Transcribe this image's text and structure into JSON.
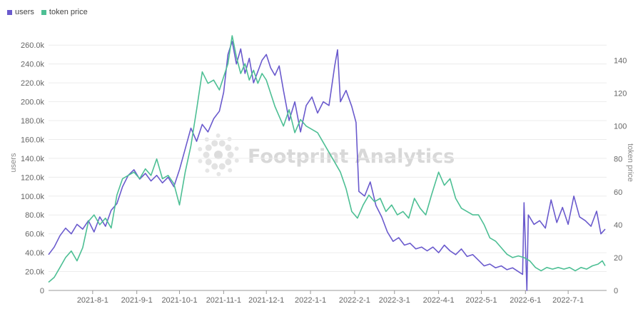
{
  "watermark": {
    "text": "Footprint Analytics",
    "icon": "footprint-logo-icon"
  },
  "legend": [
    {
      "label": "users",
      "color": "#6a5acd"
    },
    {
      "label": "token price",
      "color": "#4dbf94"
    }
  ],
  "chart_data": {
    "type": "line",
    "x_ticks": [
      "2021-8-1",
      "2021-9-1",
      "2021-10-1",
      "2021-11-1",
      "2021-12-1",
      "2022-1-1",
      "2022-2-1",
      "2022-3-1",
      "2022-4-1",
      "2022-5-1",
      "2022-6-1",
      "2022-7-1"
    ],
    "y_left": {
      "title": "users",
      "min": 0,
      "max": 270000,
      "ticks": [
        0,
        20000,
        40000,
        60000,
        80000,
        100000,
        120000,
        140000,
        160000,
        180000,
        200000,
        220000,
        240000,
        260000
      ],
      "tick_labels": [
        "0",
        "20.0k",
        "40.0k",
        "60.0k",
        "80.0k",
        "100.0k",
        "120.0k",
        "140.0k",
        "160.0k",
        "180.0k",
        "200.0k",
        "220.0k",
        "240.0k",
        "260.0k"
      ]
    },
    "y_right": {
      "title": "token price",
      "min": 0,
      "max": 155,
      "ticks": [
        0,
        20,
        40,
        60,
        80,
        100,
        120,
        140
      ],
      "tick_labels": [
        "0",
        "20",
        "40",
        "60",
        "80",
        "100",
        "120",
        "140"
      ]
    },
    "series": [
      {
        "name": "users",
        "axis": "left",
        "color": "#6a5acd",
        "points": [
          [
            "2021-7-1",
            38000
          ],
          [
            "2021-7-5",
            46000
          ],
          [
            "2021-7-9",
            58000
          ],
          [
            "2021-7-13",
            66000
          ],
          [
            "2021-7-17",
            60000
          ],
          [
            "2021-7-21",
            70000
          ],
          [
            "2021-7-25",
            65000
          ],
          [
            "2021-7-29",
            74000
          ],
          [
            "2021-8-2",
            62000
          ],
          [
            "2021-8-6",
            78000
          ],
          [
            "2021-8-10",
            68000
          ],
          [
            "2021-8-14",
            85000
          ],
          [
            "2021-8-18",
            92000
          ],
          [
            "2021-8-22",
            110000
          ],
          [
            "2021-8-26",
            122000
          ],
          [
            "2021-8-30",
            128000
          ],
          [
            "2021-9-3",
            118000
          ],
          [
            "2021-9-7",
            124000
          ],
          [
            "2021-9-11",
            116000
          ],
          [
            "2021-9-15",
            122000
          ],
          [
            "2021-9-19",
            114000
          ],
          [
            "2021-9-23",
            120000
          ],
          [
            "2021-9-27",
            110000
          ],
          [
            "2021-10-1",
            128000
          ],
          [
            "2021-10-5",
            150000
          ],
          [
            "2021-10-9",
            172000
          ],
          [
            "2021-10-13",
            158000
          ],
          [
            "2021-10-17",
            176000
          ],
          [
            "2021-10-21",
            168000
          ],
          [
            "2021-10-25",
            182000
          ],
          [
            "2021-10-29",
            190000
          ],
          [
            "2021-11-1",
            210000
          ],
          [
            "2021-11-4",
            250000
          ],
          [
            "2021-11-7",
            264000
          ],
          [
            "2021-11-10",
            240000
          ],
          [
            "2021-11-13",
            256000
          ],
          [
            "2021-11-16",
            230000
          ],
          [
            "2021-11-19",
            246000
          ],
          [
            "2021-11-22",
            220000
          ],
          [
            "2021-11-25",
            232000
          ],
          [
            "2021-11-28",
            244000
          ],
          [
            "2021-12-1",
            250000
          ],
          [
            "2021-12-4",
            236000
          ],
          [
            "2021-12-7",
            228000
          ],
          [
            "2021-12-10",
            238000
          ],
          [
            "2021-12-13",
            212000
          ],
          [
            "2021-12-17",
            180000
          ],
          [
            "2021-12-21",
            200000
          ],
          [
            "2021-12-25",
            168000
          ],
          [
            "2021-12-29",
            196000
          ],
          [
            "2022-1-2",
            205000
          ],
          [
            "2022-1-6",
            188000
          ],
          [
            "2022-1-10",
            200000
          ],
          [
            "2022-1-14",
            196000
          ],
          [
            "2022-1-18",
            238000
          ],
          [
            "2022-1-20",
            255000
          ],
          [
            "2022-1-22",
            200000
          ],
          [
            "2022-1-26",
            212000
          ],
          [
            "2022-1-30",
            195000
          ],
          [
            "2022-2-2",
            178000
          ],
          [
            "2022-2-4",
            105000
          ],
          [
            "2022-2-8",
            100000
          ],
          [
            "2022-2-12",
            115000
          ],
          [
            "2022-2-16",
            90000
          ],
          [
            "2022-2-20",
            78000
          ],
          [
            "2022-2-24",
            62000
          ],
          [
            "2022-2-28",
            52000
          ],
          [
            "2022-3-4",
            56000
          ],
          [
            "2022-3-8",
            48000
          ],
          [
            "2022-3-12",
            50000
          ],
          [
            "2022-3-16",
            44000
          ],
          [
            "2022-3-20",
            46000
          ],
          [
            "2022-3-24",
            42000
          ],
          [
            "2022-3-28",
            46000
          ],
          [
            "2022-4-1",
            40000
          ],
          [
            "2022-4-5",
            48000
          ],
          [
            "2022-4-9",
            42000
          ],
          [
            "2022-4-13",
            38000
          ],
          [
            "2022-4-17",
            44000
          ],
          [
            "2022-4-21",
            36000
          ],
          [
            "2022-4-25",
            38000
          ],
          [
            "2022-4-29",
            32000
          ],
          [
            "2022-5-3",
            26000
          ],
          [
            "2022-5-7",
            28000
          ],
          [
            "2022-5-11",
            24000
          ],
          [
            "2022-5-15",
            26000
          ],
          [
            "2022-5-19",
            22000
          ],
          [
            "2022-5-23",
            24000
          ],
          [
            "2022-5-27",
            20000
          ],
          [
            "2022-5-30",
            17000
          ],
          [
            "2022-5-31",
            93000
          ],
          [
            "2022-6-2",
            0
          ],
          [
            "2022-6-3",
            80000
          ],
          [
            "2022-6-7",
            70000
          ],
          [
            "2022-6-11",
            74000
          ],
          [
            "2022-6-15",
            66000
          ],
          [
            "2022-6-19",
            96000
          ],
          [
            "2022-6-23",
            72000
          ],
          [
            "2022-6-27",
            88000
          ],
          [
            "2022-7-1",
            70000
          ],
          [
            "2022-7-5",
            100000
          ],
          [
            "2022-7-9",
            78000
          ],
          [
            "2022-7-13",
            74000
          ],
          [
            "2022-7-17",
            68000
          ],
          [
            "2022-7-21",
            84000
          ],
          [
            "2022-7-24",
            60000
          ],
          [
            "2022-7-27",
            65000
          ]
        ]
      },
      {
        "name": "token price",
        "axis": "right",
        "color": "#4dbf94",
        "points": [
          [
            "2021-7-1",
            5
          ],
          [
            "2021-7-5",
            8
          ],
          [
            "2021-7-9",
            14
          ],
          [
            "2021-7-13",
            20
          ],
          [
            "2021-7-17",
            24
          ],
          [
            "2021-7-21",
            18
          ],
          [
            "2021-7-25",
            26
          ],
          [
            "2021-7-29",
            42
          ],
          [
            "2021-8-2",
            46
          ],
          [
            "2021-8-6",
            40
          ],
          [
            "2021-8-10",
            44
          ],
          [
            "2021-8-14",
            38
          ],
          [
            "2021-8-18",
            58
          ],
          [
            "2021-8-22",
            68
          ],
          [
            "2021-8-26",
            70
          ],
          [
            "2021-8-30",
            72
          ],
          [
            "2021-9-3",
            68
          ],
          [
            "2021-9-7",
            74
          ],
          [
            "2021-9-11",
            70
          ],
          [
            "2021-9-15",
            80
          ],
          [
            "2021-9-19",
            68
          ],
          [
            "2021-9-23",
            70
          ],
          [
            "2021-9-27",
            65
          ],
          [
            "2021-10-1",
            52
          ],
          [
            "2021-10-5",
            72
          ],
          [
            "2021-10-9",
            88
          ],
          [
            "2021-10-13",
            110
          ],
          [
            "2021-10-17",
            133
          ],
          [
            "2021-10-21",
            126
          ],
          [
            "2021-10-25",
            128
          ],
          [
            "2021-10-29",
            122
          ],
          [
            "2021-11-1",
            130
          ],
          [
            "2021-11-4",
            138
          ],
          [
            "2021-11-7",
            155
          ],
          [
            "2021-11-10",
            142
          ],
          [
            "2021-11-13",
            132
          ],
          [
            "2021-11-16",
            138
          ],
          [
            "2021-11-19",
            128
          ],
          [
            "2021-11-22",
            134
          ],
          [
            "2021-11-25",
            126
          ],
          [
            "2021-11-28",
            132
          ],
          [
            "2021-12-1",
            128
          ],
          [
            "2021-12-4",
            120
          ],
          [
            "2021-12-7",
            112
          ],
          [
            "2021-12-10",
            106
          ],
          [
            "2021-12-13",
            100
          ],
          [
            "2021-12-17",
            110
          ],
          [
            "2021-12-21",
            96
          ],
          [
            "2021-12-25",
            104
          ],
          [
            "2021-12-29",
            100
          ],
          [
            "2022-1-2",
            98
          ],
          [
            "2022-1-6",
            96
          ],
          [
            "2022-1-10",
            90
          ],
          [
            "2022-1-14",
            84
          ],
          [
            "2022-1-18",
            78
          ],
          [
            "2022-1-22",
            72
          ],
          [
            "2022-1-26",
            62
          ],
          [
            "2022-1-30",
            48
          ],
          [
            "2022-2-3",
            44
          ],
          [
            "2022-2-7",
            52
          ],
          [
            "2022-2-11",
            58
          ],
          [
            "2022-2-15",
            54
          ],
          [
            "2022-2-19",
            56
          ],
          [
            "2022-2-23",
            48
          ],
          [
            "2022-2-27",
            52
          ],
          [
            "2022-3-3",
            46
          ],
          [
            "2022-3-7",
            48
          ],
          [
            "2022-3-11",
            44
          ],
          [
            "2022-3-15",
            56
          ],
          [
            "2022-3-19",
            50
          ],
          [
            "2022-3-23",
            46
          ],
          [
            "2022-3-27",
            58
          ],
          [
            "2022-4-1",
            72
          ],
          [
            "2022-4-5",
            64
          ],
          [
            "2022-4-9",
            68
          ],
          [
            "2022-4-13",
            56
          ],
          [
            "2022-4-17",
            50
          ],
          [
            "2022-4-21",
            48
          ],
          [
            "2022-4-25",
            46
          ],
          [
            "2022-4-29",
            46
          ],
          [
            "2022-5-3",
            40
          ],
          [
            "2022-5-7",
            32
          ],
          [
            "2022-5-11",
            30
          ],
          [
            "2022-5-15",
            26
          ],
          [
            "2022-5-19",
            22
          ],
          [
            "2022-5-23",
            20
          ],
          [
            "2022-5-27",
            21
          ],
          [
            "2022-5-31",
            20
          ],
          [
            "2022-6-4",
            18
          ],
          [
            "2022-6-8",
            14
          ],
          [
            "2022-6-12",
            12
          ],
          [
            "2022-6-16",
            14
          ],
          [
            "2022-6-20",
            13
          ],
          [
            "2022-6-24",
            14
          ],
          [
            "2022-6-28",
            13
          ],
          [
            "2022-7-2",
            14
          ],
          [
            "2022-7-6",
            12
          ],
          [
            "2022-7-10",
            14
          ],
          [
            "2022-7-14",
            13
          ],
          [
            "2022-7-18",
            15
          ],
          [
            "2022-7-22",
            16
          ],
          [
            "2022-7-25",
            18
          ],
          [
            "2022-7-27",
            15
          ]
        ]
      }
    ]
  }
}
